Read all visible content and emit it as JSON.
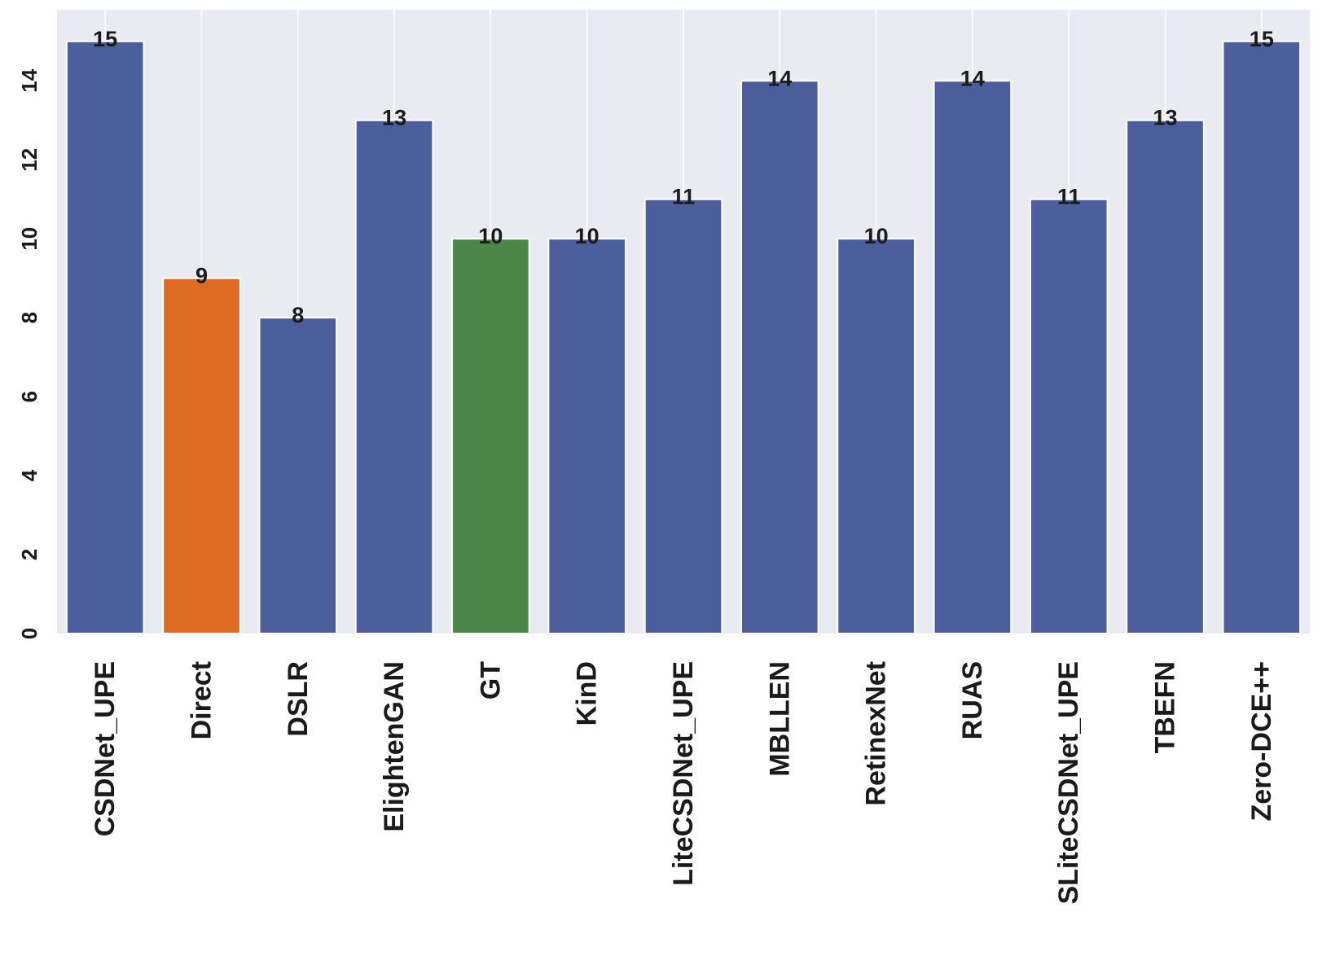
{
  "chart_data": {
    "type": "bar",
    "title": "",
    "xlabel": "",
    "ylabel": "",
    "ylim": [
      0,
      15.8
    ],
    "yticks": [
      0,
      2,
      4,
      6,
      8,
      10,
      12,
      14
    ],
    "grid": "vertical",
    "background_color": "#eaeaf2",
    "grid_color": "#ffffff",
    "categories": [
      "CSDNet_UPE",
      "Direct",
      "DSLR",
      "ElightenGAN",
      "GT",
      "KinD",
      "LiteCSDNet_UPE",
      "MBLLEN",
      "RetinexNet",
      "RUAS",
      "SLiteCSDNet_UPE",
      "TBEFN",
      "Zero-DCE++"
    ],
    "values": [
      15,
      9,
      8,
      13,
      10,
      10,
      11,
      14,
      10,
      14,
      11,
      13,
      15
    ],
    "colors": [
      "#4c5f9c",
      "#dd6b24",
      "#4c5f9c",
      "#4c5f9c",
      "#4a8749",
      "#4c5f9c",
      "#4c5f9c",
      "#4c5f9c",
      "#4c5f9c",
      "#4c5f9c",
      "#4c5f9c",
      "#4c5f9c",
      "#4c5f9c"
    ],
    "data_labels": [
      "15",
      "9",
      "8",
      "13",
      "10",
      "10",
      "11",
      "14",
      "10",
      "14",
      "11",
      "13",
      "15"
    ]
  }
}
